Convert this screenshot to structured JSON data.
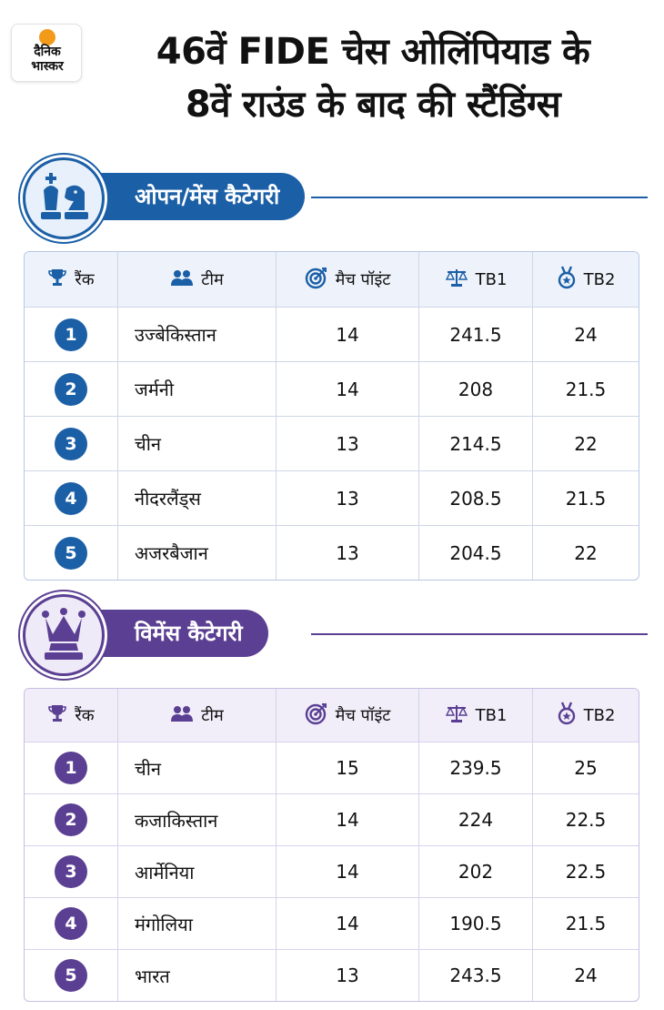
{
  "brand": {
    "logo_line1": "दैनिक",
    "logo_line2": "भास्कर"
  },
  "title": {
    "line1": "46वें FIDE चेस ओलिंपियाड के",
    "line2": "8वें राउंड के बाद की स्टैंडिंग्स"
  },
  "colors": {
    "open": "#1b5fa6",
    "open_dark": "#0f4a8a",
    "women": "#5b3f93",
    "women_dark": "#4a2f80",
    "open_head_bg": "#eef3fb",
    "women_head_bg": "#f1eefa"
  },
  "headers": {
    "rank": "रैंक",
    "team": "टीम",
    "points": "मैच पॉइंट",
    "tb1": "TB1",
    "tb2": "TB2"
  },
  "sections": [
    {
      "label": "ओपन/मेंस कैटेगरी",
      "icon": "king-knight-icon",
      "rows": [
        {
          "rank": "1",
          "team": "उज्बेकिस्तान",
          "points": "14",
          "tb1": "241.5",
          "tb2": "24"
        },
        {
          "rank": "2",
          "team": "जर्मनी",
          "points": "14",
          "tb1": "208",
          "tb2": "21.5"
        },
        {
          "rank": "3",
          "team": "चीन",
          "points": "13",
          "tb1": "214.5",
          "tb2": "22"
        },
        {
          "rank": "4",
          "team": "नीदरलैंड्स",
          "points": "13",
          "tb1": "208.5",
          "tb2": "21.5"
        },
        {
          "rank": "5",
          "team": "अजरबैजान",
          "points": "13",
          "tb1": "204.5",
          "tb2": "22"
        }
      ]
    },
    {
      "label": "विमेंस कैटेगरी",
      "icon": "queen-icon",
      "rows": [
        {
          "rank": "1",
          "team": "चीन",
          "points": "15",
          "tb1": "239.5",
          "tb2": "25"
        },
        {
          "rank": "2",
          "team": "कजाकिस्तान",
          "points": "14",
          "tb1": "224",
          "tb2": "22.5"
        },
        {
          "rank": "3",
          "team": "आर्मेनिया",
          "points": "14",
          "tb1": "202",
          "tb2": "22.5"
        },
        {
          "rank": "4",
          "team": "मंगोलिया",
          "points": "14",
          "tb1": "190.5",
          "tb2": "21.5"
        },
        {
          "rank": "5",
          "team": "भारत",
          "points": "13",
          "tb1": "243.5",
          "tb2": "24"
        }
      ]
    }
  ]
}
